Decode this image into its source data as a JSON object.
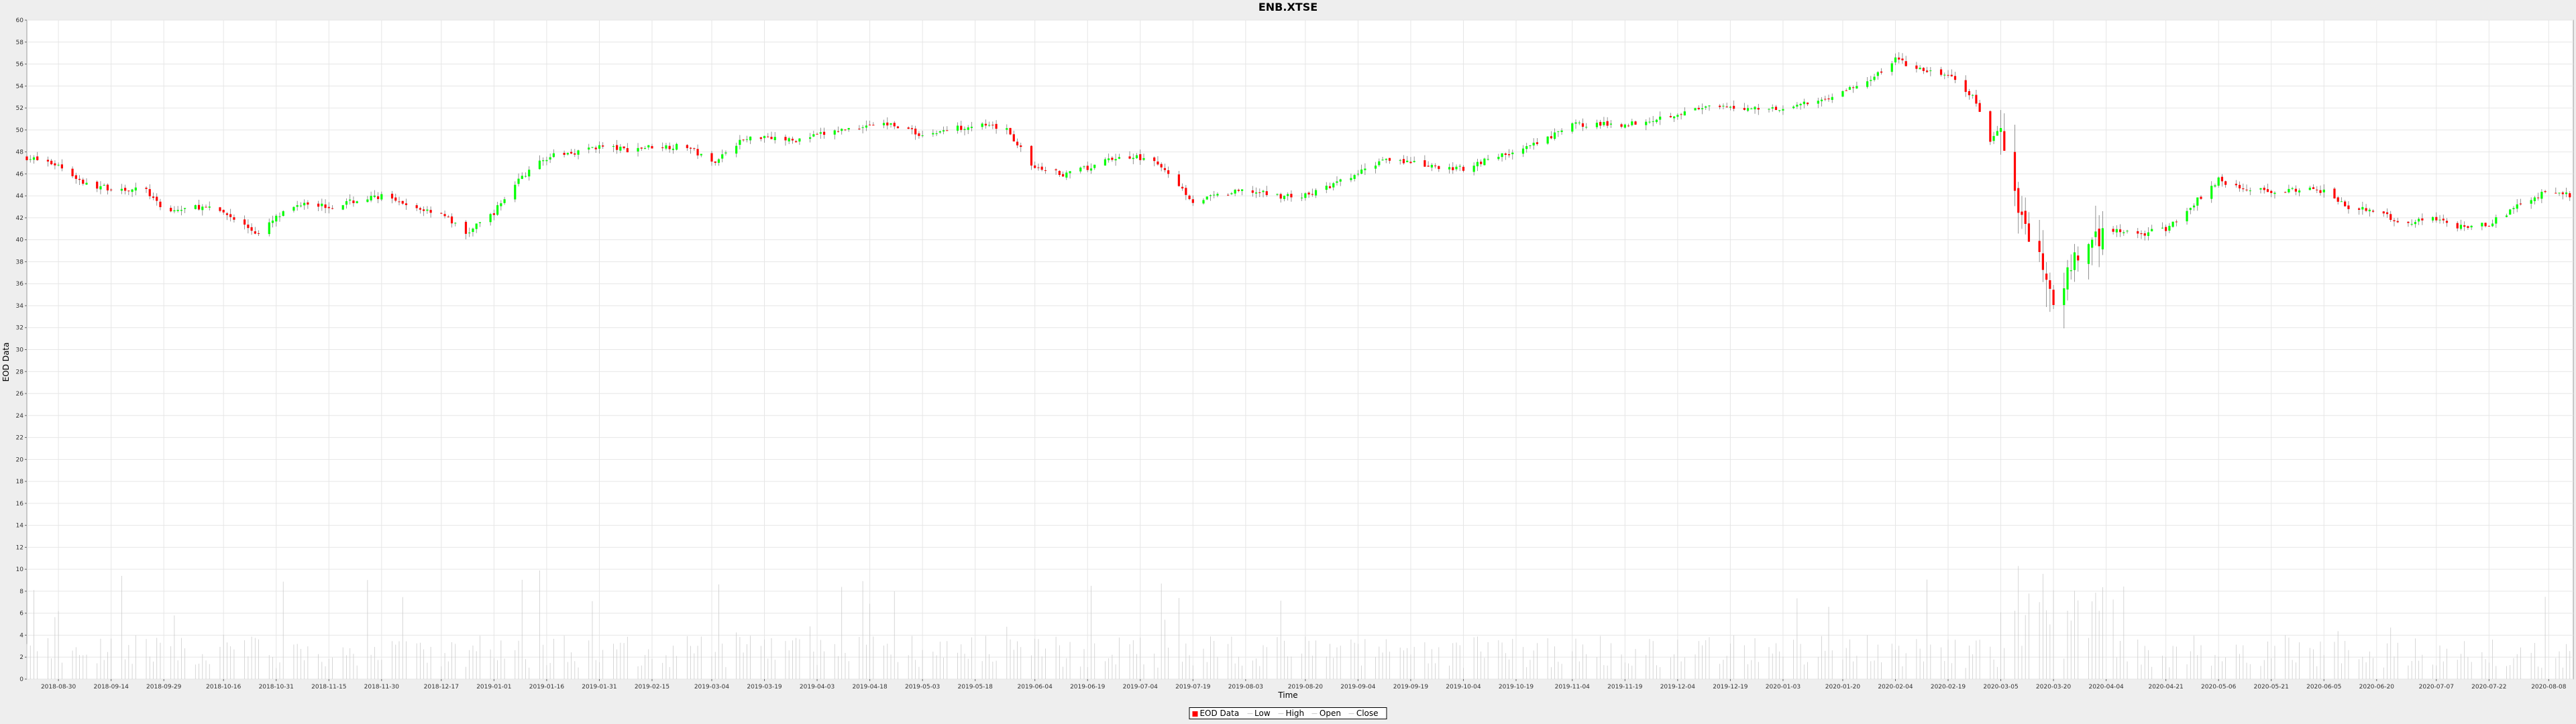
{
  "chart_data": {
    "type": "candlestick",
    "title": "ENB.XTSE",
    "xlabel": "Time",
    "ylabel": "EOD Data",
    "ylim": [
      0,
      60
    ],
    "y_ticks": [
      0,
      2,
      4,
      6,
      8,
      10,
      12,
      14,
      16,
      18,
      20,
      22,
      24,
      26,
      28,
      30,
      32,
      34,
      36,
      38,
      40,
      42,
      44,
      46,
      48,
      50,
      52,
      54,
      56,
      58,
      60
    ],
    "x_tick_labels": [
      "2018-08-30",
      "2018-09-14",
      "2018-09-29",
      "2018-10-16",
      "2018-10-31",
      "2018-11-15",
      "2018-11-30",
      "2018-12-17",
      "2019-01-01",
      "2019-01-16",
      "2019-01-31",
      "2019-02-15",
      "2019-03-04",
      "2019-03-19",
      "2019-04-03",
      "2019-04-18",
      "2019-05-03",
      "2019-05-18",
      "2019-06-04",
      "2019-06-19",
      "2019-07-04",
      "2019-07-19",
      "2019-08-03",
      "2019-08-20",
      "2019-09-04",
      "2019-09-19",
      "2019-10-04",
      "2019-10-19",
      "2019-11-04",
      "2019-11-19",
      "2019-12-04",
      "2019-12-19",
      "2020-01-03",
      "2020-01-20",
      "2020-02-04",
      "2020-02-19",
      "2020-03-05",
      "2020-03-20",
      "2020-04-04",
      "2020-04-21",
      "2020-05-06",
      "2020-05-21",
      "2020-06-05",
      "2020-06-20",
      "2020-07-07",
      "2020-07-22",
      "2020-08-08"
    ],
    "close_trajectory": {
      "x": [
        "2018-08-21",
        "2018-08-30",
        "2018-09-07",
        "2018-09-14",
        "2018-09-24",
        "2018-09-29",
        "2018-10-09",
        "2018-10-16",
        "2018-10-26",
        "2018-10-31",
        "2018-11-08",
        "2018-11-15",
        "2018-11-22",
        "2018-11-30",
        "2018-12-07",
        "2018-12-17",
        "2018-12-24",
        "2019-01-01",
        "2019-01-08",
        "2019-01-16",
        "2019-01-24",
        "2019-01-31",
        "2019-02-08",
        "2019-02-15",
        "2019-02-25",
        "2019-03-04",
        "2019-03-12",
        "2019-03-19",
        "2019-03-27",
        "2019-04-03",
        "2019-04-10",
        "2019-04-18",
        "2019-04-25",
        "2019-05-03",
        "2019-05-10",
        "2019-05-18",
        "2019-05-27",
        "2019-06-04",
        "2019-06-12",
        "2019-06-19",
        "2019-06-27",
        "2019-07-04",
        "2019-07-11",
        "2019-07-19",
        "2019-07-26",
        "2019-08-03",
        "2019-08-12",
        "2019-08-20",
        "2019-08-28",
        "2019-09-04",
        "2019-09-12",
        "2019-09-19",
        "2019-09-27",
        "2019-10-04",
        "2019-10-12",
        "2019-10-19",
        "2019-10-27",
        "2019-11-04",
        "2019-11-11",
        "2019-11-19",
        "2019-11-27",
        "2019-12-04",
        "2019-12-12",
        "2019-12-19",
        "2019-12-27",
        "2020-01-03",
        "2020-01-12",
        "2020-01-20",
        "2020-01-28",
        "2020-02-04",
        "2020-02-10",
        "2020-02-19",
        "2020-02-26",
        "2020-03-02",
        "2020-03-05",
        "2020-03-10",
        "2020-03-14",
        "2020-03-20",
        "2020-03-27",
        "2020-04-04",
        "2020-04-13",
        "2020-04-21",
        "2020-04-28",
        "2020-05-06",
        "2020-05-14",
        "2020-05-21",
        "2020-05-29",
        "2020-06-05",
        "2020-06-12",
        "2020-06-20",
        "2020-06-28",
        "2020-07-07",
        "2020-07-15",
        "2020-07-22",
        "2020-07-30",
        "2020-08-08",
        "2020-08-15"
      ],
      "y": [
        47.5,
        46.8,
        45.0,
        44.7,
        44.5,
        42.5,
        43.0,
        42.5,
        40.5,
        42.0,
        43.5,
        43.0,
        43.5,
        44.0,
        43.0,
        42.5,
        40.5,
        42.5,
        45.5,
        47.5,
        48.0,
        48.5,
        48.2,
        48.5,
        48.5,
        47.0,
        49.0,
        49.5,
        49.0,
        49.5,
        50.0,
        50.5,
        50.5,
        49.5,
        50.0,
        50.5,
        50.0,
        46.5,
        46.0,
        46.5,
        47.5,
        47.5,
        46.5,
        43.5,
        44.0,
        44.5,
        44.0,
        44.0,
        45.0,
        46.0,
        47.5,
        47.0,
        46.5,
        46.5,
        47.5,
        48.0,
        49.0,
        50.5,
        50.5,
        50.5,
        51.0,
        51.5,
        52.0,
        52.0,
        52.0,
        52.0,
        52.5,
        53.5,
        54.5,
        56.5,
        55.5,
        55.0,
        53.0,
        49.0,
        50.5,
        43.0,
        40.0,
        35.0,
        38.5,
        41.0,
        40.5,
        41.0,
        43.0,
        45.5,
        44.5,
        44.5,
        44.5,
        44.5,
        43.0,
        42.5,
        41.5,
        42.0,
        41.0,
        41.5,
        43.0,
        44.5,
        44.0
      ]
    },
    "series": [
      {
        "name": "EOD Data"
      },
      {
        "name": "Low"
      },
      {
        "name": "High"
      },
      {
        "name": "Open"
      },
      {
        "name": "Close"
      }
    ],
    "volume_bars": "light gray vertical lines along the bottom, mostly 1–5 with spikes up to ~18",
    "colors": {
      "up": "#00ff00",
      "down": "#ff0000",
      "grid": "#e6e6e6",
      "plot_bg": "#ffffff",
      "page_bg": "#eeeeee",
      "volume": "#cccccc"
    },
    "grid": true,
    "legend_position": "bottom-center"
  }
}
